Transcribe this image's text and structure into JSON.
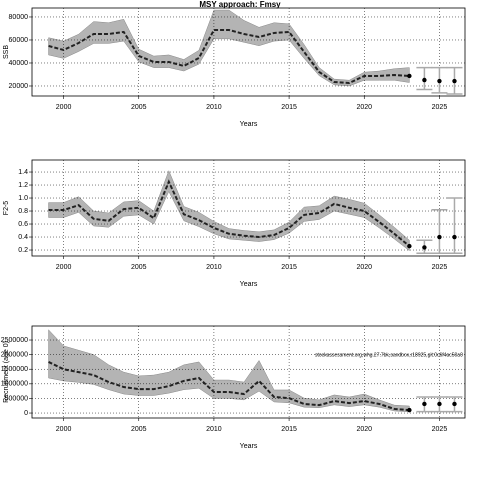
{
  "title": "MSY approach: Fmsy",
  "chart_data": [
    {
      "type": "line",
      "ylabel": "SSB",
      "xlabel": "Years",
      "x": [
        1999,
        2000,
        2001,
        2002,
        2003,
        2004,
        2005,
        2006,
        2007,
        2008,
        2009,
        2010,
        2011,
        2012,
        2013,
        2014,
        2015,
        2016,
        2017,
        2018,
        2019,
        2020,
        2021,
        2022,
        2023
      ],
      "values": [
        54800,
        51300,
        57400,
        65200,
        65200,
        67000,
        46100,
        40900,
        40900,
        37400,
        44300,
        68700,
        68700,
        65200,
        62600,
        66100,
        67000,
        49600,
        32200,
        23500,
        22600,
        28700,
        28700,
        29600,
        28700
      ],
      "lower": [
        47000,
        44000,
        50000,
        57000,
        57000,
        59000,
        41000,
        36000,
        36000,
        33000,
        39000,
        61000,
        61000,
        58000,
        55000,
        59000,
        60000,
        44000,
        29000,
        21000,
        20000,
        25000,
        25000,
        25000,
        23000
      ],
      "upper": [
        62000,
        59000,
        65000,
        76000,
        75000,
        78000,
        52000,
        46000,
        47000,
        43000,
        51000,
        86000,
        86000,
        77000,
        71000,
        75000,
        74000,
        56000,
        36000,
        26000,
        25000,
        32000,
        33000,
        35000,
        36000
      ],
      "forecast_x": [
        2024,
        2025,
        2026
      ],
      "forecast_values": [
        25200,
        24300,
        24300
      ],
      "forecast_lower": [
        17000,
        14000,
        13000
      ],
      "forecast_upper": [
        36000,
        36000,
        36000
      ],
      "xlim": [
        1997.9,
        2026.7
      ],
      "xticks": [
        2000,
        2005,
        2010,
        2015,
        2020,
        2025
      ],
      "ylim": [
        11300,
        87800
      ],
      "yticks": [
        20000,
        40000,
        60000,
        80000
      ],
      "line_color": "#222222",
      "band_color": "#b4b4b4",
      "forecast_color": "#aaaaaa",
      "grid": true
    },
    {
      "type": "line",
      "ylabel": "F2-5",
      "xlabel": "Years",
      "x": [
        1999,
        2000,
        2001,
        2002,
        2003,
        2004,
        2005,
        2006,
        2007,
        2008,
        2009,
        2010,
        2011,
        2012,
        2013,
        2014,
        2015,
        2016,
        2017,
        2018,
        2019,
        2020,
        2021,
        2022,
        2023
      ],
      "values": [
        0.815,
        0.815,
        0.89,
        0.68,
        0.65,
        0.83,
        0.85,
        0.69,
        1.25,
        0.75,
        0.66,
        0.54,
        0.45,
        0.42,
        0.4,
        0.43,
        0.54,
        0.74,
        0.77,
        0.91,
        0.85,
        0.8,
        0.63,
        0.45,
        0.26
      ],
      "lower": [
        0.7,
        0.7,
        0.78,
        0.57,
        0.55,
        0.72,
        0.74,
        0.6,
        1.1,
        0.65,
        0.56,
        0.45,
        0.37,
        0.35,
        0.33,
        0.36,
        0.46,
        0.64,
        0.67,
        0.8,
        0.75,
        0.7,
        0.54,
        0.37,
        0.19
      ],
      "upper": [
        0.93,
        0.93,
        1.02,
        0.8,
        0.77,
        0.94,
        0.96,
        0.8,
        1.42,
        0.87,
        0.78,
        0.64,
        0.53,
        0.5,
        0.48,
        0.51,
        0.63,
        0.86,
        0.88,
        1.03,
        0.98,
        0.92,
        0.74,
        0.55,
        0.35
      ],
      "forecast_x": [
        2024,
        2025,
        2026
      ],
      "forecast_values": [
        0.24,
        0.4,
        0.4
      ],
      "forecast_lower": [
        0.15,
        0.15,
        0.15
      ],
      "forecast_upper": [
        0.35,
        0.82,
        1.0
      ],
      "xlim": [
        1997.9,
        2026.7
      ],
      "xticks": [
        2000,
        2005,
        2010,
        2015,
        2020,
        2025
      ],
      "ylim": [
        0.108,
        1.585
      ],
      "yticks": [
        0.2,
        0.4,
        0.6,
        0.8,
        {
          "value": 1,
          "label": "1.0"
        },
        1.2,
        1.4
      ],
      "line_color": "#222222",
      "band_color": "#b4b4b4",
      "forecast_color": "#aaaaaa",
      "grid": true
    },
    {
      "type": "line",
      "ylabel": "Recruitment (age 0)",
      "xlabel": "Years",
      "annotation": "stockassessment.org,whg.27.7bk,sandbox,r18925,git:0c6f4ac50a0",
      "x": [
        1999,
        2000,
        2001,
        2002,
        2003,
        2004,
        2005,
        2006,
        2007,
        2008,
        2009,
        2010,
        2011,
        2012,
        2013,
        2014,
        2015,
        2016,
        2017,
        2018,
        2019,
        2020,
        2021,
        2022,
        2023
      ],
      "values": [
        1750000,
        1500000,
        1400000,
        1300000,
        1060000,
        890000,
        820000,
        820000,
        920000,
        1100000,
        1200000,
        720000,
        720000,
        650000,
        1100000,
        550000,
        510000,
        310000,
        270000,
        410000,
        340000,
        410000,
        310000,
        140000,
        100000
      ],
      "lower": [
        1200000,
        1100000,
        1050000,
        980000,
        800000,
        650000,
        600000,
        600000,
        680000,
        800000,
        850000,
        500000,
        500000,
        450000,
        750000,
        380000,
        350000,
        200000,
        180000,
        280000,
        220000,
        280000,
        200000,
        70000,
        40000
      ],
      "upper": [
        2850000,
        2300000,
        2150000,
        2000000,
        1650000,
        1400000,
        1270000,
        1300000,
        1400000,
        1650000,
        1750000,
        1130000,
        1130000,
        1060000,
        1800000,
        790000,
        790000,
        510000,
        450000,
        620000,
        550000,
        650000,
        450000,
        270000,
        240000
      ],
      "forecast_x": [
        2024,
        2025,
        2026
      ],
      "forecast_values": [
        310000,
        310000,
        310000
      ],
      "forecast_lower": [
        50000,
        50000,
        50000
      ],
      "forecast_upper": [
        550000,
        550000,
        550000
      ],
      "xlim": [
        1997.9,
        2026.7
      ],
      "xticks": [
        2000,
        2005,
        2010,
        2015,
        2020,
        2025
      ],
      "ylim": [
        -170000,
        2980000
      ],
      "yticks": [
        0,
        500000,
        1000000,
        1500000,
        2000000,
        2500000
      ],
      "line_color": "#222222",
      "band_color": "#b4b4b4",
      "forecast_color": "#aaaaaa",
      "grid": true
    }
  ]
}
